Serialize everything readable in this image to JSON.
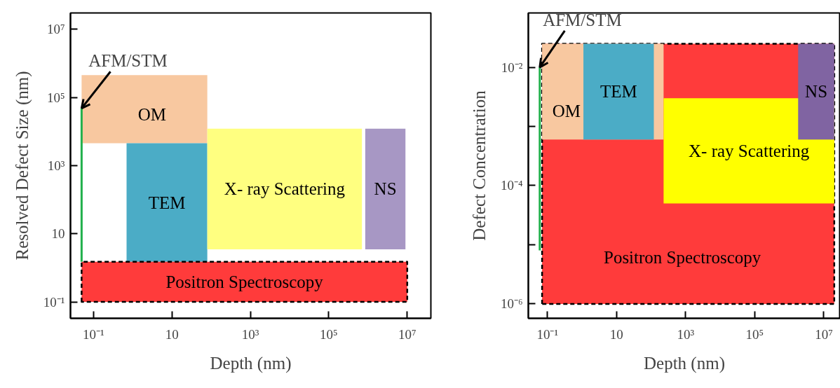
{
  "chart_data": [
    {
      "type": "area",
      "xlabel": "Depth (nm)",
      "ylabel": "Resolved Defect Size (nm)",
      "log": "xy",
      "xlim": [
        0.026,
        40000000
      ],
      "ylim": [
        0.033,
        30000000
      ],
      "xticks": [
        {
          "value": 0.1,
          "label": "10⁻¹"
        },
        10,
        {
          "value": 1000,
          "label": "10³"
        },
        {
          "value": 100000,
          "label": "10⁵"
        },
        {
          "value": 10000000,
          "label": "10⁷"
        }
      ],
      "yticks": [
        {
          "value": 0.1,
          "label": "10⁻¹"
        },
        10,
        {
          "value": 1000,
          "label": "10³"
        },
        {
          "value": 100000,
          "label": "10⁵"
        },
        {
          "value": 10000000,
          "label": "10⁷"
        }
      ],
      "series": [
        {
          "name": "OM",
          "color": "#f8c8a0",
          "x": [
            0.05,
            0.05,
            80,
            80
          ],
          "values": [
            4500,
            450000,
            450000,
            4500
          ]
        },
        {
          "name": "TEM",
          "color": "#4bacc6",
          "x": [
            0.7,
            0.7,
            80,
            80
          ],
          "values": [
            1.5,
            4500,
            4500,
            1.5
          ]
        },
        {
          "name": "X- ray Scattering",
          "color": "#ffff80",
          "x": [
            80,
            80,
            700000,
            700000
          ],
          "values": [
            3.5,
            12000,
            12000,
            3.5
          ]
        },
        {
          "name": "NS",
          "color": "#a797c4",
          "x": [
            850000,
            850000,
            9000000,
            9000000
          ],
          "values": [
            3.5,
            12000,
            12000,
            3.5
          ]
        },
        {
          "name": "Positron Spectroscopy",
          "color": "#ff3b3b",
          "line_style": "dashed",
          "x": [
            0.05,
            0.05,
            10000000,
            10000000
          ],
          "values": [
            0.1,
            1.5,
            1.5,
            0.1
          ]
        },
        {
          "type": "line",
          "color": "#22b14c",
          "x": [
            0.05,
            0.05
          ],
          "values": [
            1.5,
            48000
          ]
        }
      ],
      "annotations": [
        {
          "text": "AFM/STM",
          "x": 0.05,
          "y": 48000
        }
      ]
    },
    {
      "type": "area",
      "xlabel": "Depth (nm)",
      "ylabel": "Defect Concentration",
      "log": "xy",
      "xlim": [
        0.028,
        30000000
      ],
      "ylim": [
        5.7e-07,
        0.083
      ],
      "xticks": [
        {
          "value": 0.1,
          "label": "10⁻¹"
        },
        10,
        {
          "value": 1000,
          "label": "10³"
        },
        {
          "value": 100000,
          "label": "10⁵"
        },
        {
          "value": 10000000,
          "label": "10⁷"
        }
      ],
      "yticks": [
        {
          "value": 1e-06,
          "label": "10⁻⁶"
        },
        {
          "value": 1e-05,
          "label": null
        },
        {
          "value": 0.0001,
          "label": "10⁻⁴"
        },
        {
          "value": 0.001,
          "label": null
        },
        {
          "value": 0.01,
          "label": "10⁻²"
        }
      ],
      "series": [
        {
          "name": "Positron Spectroscopy",
          "color": "#ff3b3b",
          "line_style": "dashed",
          "x": [
            0.07,
            0.07,
            20000000,
            20000000
          ],
          "values": [
            1e-06,
            0.025,
            0.025,
            1e-06
          ]
        },
        {
          "name": "OM",
          "color": "#f8c8a0",
          "x": [
            0.07,
            0.07,
            230,
            230
          ],
          "values": [
            0.0006,
            0.025,
            0.025,
            0.0006
          ]
        },
        {
          "name": "TEM",
          "color": "#4bacc6",
          "x": [
            1.1,
            1.1,
            120,
            120
          ],
          "values": [
            0.0006,
            0.025,
            0.025,
            0.0006
          ]
        },
        {
          "name": "X- ray Scattering",
          "color": "#ffff00",
          "x": [
            230,
            230,
            20000000,
            20000000
          ],
          "values": [
            5e-05,
            0.003,
            0.003,
            5e-05
          ]
        },
        {
          "name": "NS",
          "color": "#8064a2",
          "x": [
            1800000,
            1800000,
            20000000,
            20000000
          ],
          "values": [
            0.0006,
            0.025,
            0.025,
            0.0006
          ]
        },
        {
          "type": "line",
          "color": "#22b14c",
          "x": [
            0.06,
            0.06
          ],
          "values": [
            8e-06,
            0.01
          ]
        }
      ],
      "annotations": [
        {
          "text": "AFM/STM",
          "x": 0.06,
          "y": 0.01
        }
      ]
    }
  ]
}
